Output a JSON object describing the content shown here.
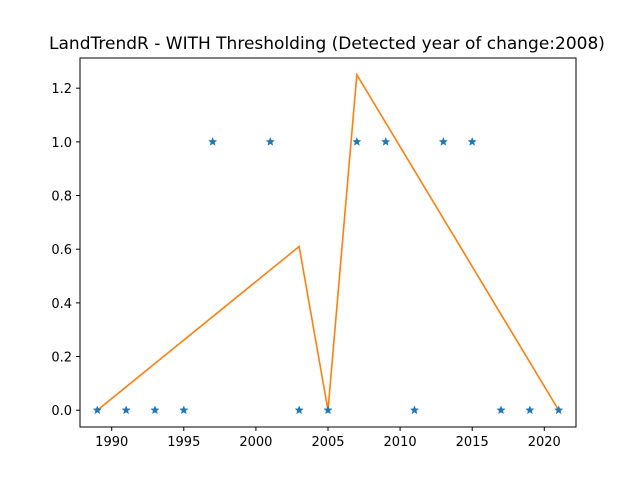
{
  "chart_data": {
    "type": "line",
    "title": "LandTrendR - WITH Thresholding (Detected year of change:2008)",
    "xlabel": "",
    "ylabel": "",
    "xlim": [
      1987.8,
      2022.2
    ],
    "ylim": [
      -0.0625,
      1.3125
    ],
    "x_ticks": [
      1990,
      1995,
      2000,
      2005,
      2010,
      2015,
      2020
    ],
    "y_ticks": [
      0.0,
      0.2,
      0.4,
      0.6,
      0.8,
      1.0,
      1.2
    ],
    "y_tick_labels": [
      "0.0",
      "0.2",
      "0.4",
      "0.6",
      "0.8",
      "1.0",
      "1.2"
    ],
    "grid": false,
    "series": [
      {
        "kind": "scatter",
        "marker": "star",
        "color": "#1f77b4",
        "x": [
          1989,
          1991,
          1993,
          1995,
          1997,
          2001,
          2003,
          2005,
          2007,
          2009,
          2011,
          2013,
          2015,
          2017,
          2019,
          2021
        ],
        "y": [
          0,
          0,
          0,
          0,
          1,
          1,
          0,
          0,
          1,
          1,
          0,
          1,
          1,
          0,
          0,
          0
        ]
      },
      {
        "kind": "line",
        "color": "#ff7f0e",
        "x": [
          1989,
          2003,
          2005,
          2007,
          2021
        ],
        "y": [
          0.0,
          0.61,
          0.0,
          1.25,
          0.0
        ]
      }
    ]
  }
}
